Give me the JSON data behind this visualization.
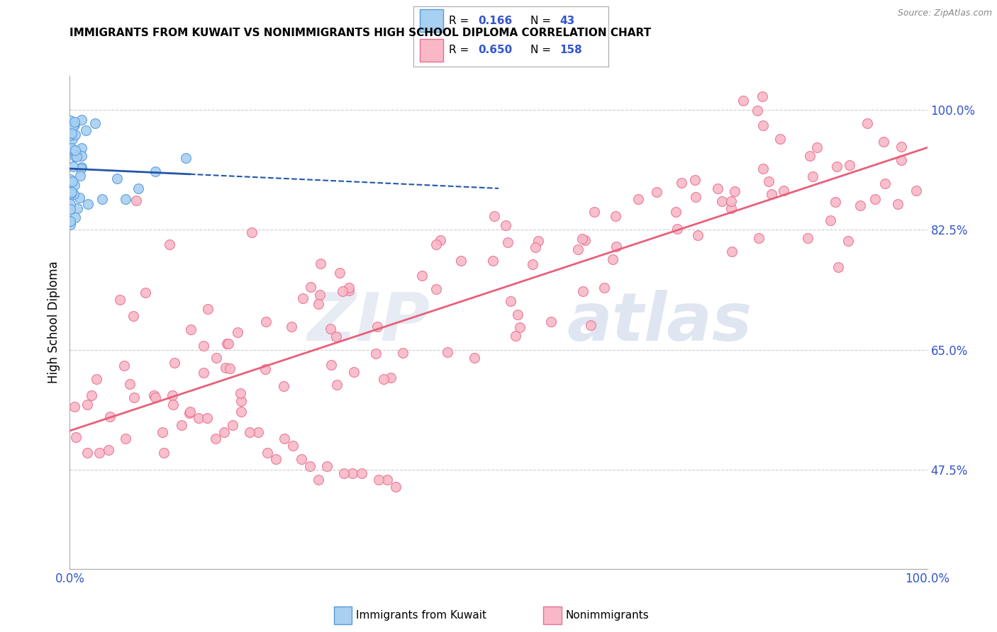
{
  "title": "IMMIGRANTS FROM KUWAIT VS NONIMMIGRANTS HIGH SCHOOL DIPLOMA CORRELATION CHART",
  "source": "Source: ZipAtlas.com",
  "ylabel": "High School Diploma",
  "legend_label1": "Immigrants from Kuwait",
  "legend_label2": "Nonimmigrants",
  "legend_R1": "0.166",
  "legend_N1": "43",
  "legend_R2": "0.650",
  "legend_N2": "158",
  "right_yticks": [
    0.475,
    0.65,
    0.825,
    1.0
  ],
  "right_yticklabels": [
    "47.5%",
    "65.0%",
    "82.5%",
    "100.0%"
  ],
  "blue_color": "#A8D0F0",
  "blue_edge_color": "#5599DD",
  "blue_line_color": "#2255AA",
  "pink_color": "#F8B8C8",
  "pink_edge_color": "#E87090",
  "pink_line_color": "#E8607A",
  "background_color": "#FFFFFF",
  "watermark_zip": "ZIP",
  "watermark_atlas": "atlas",
  "xlim": [
    0,
    1.0
  ],
  "ylim": [
    0.33,
    1.05
  ],
  "grid_yticks": [
    0.475,
    0.65,
    0.825,
    1.0
  ],
  "title_fontsize": 11,
  "source_fontsize": 9
}
